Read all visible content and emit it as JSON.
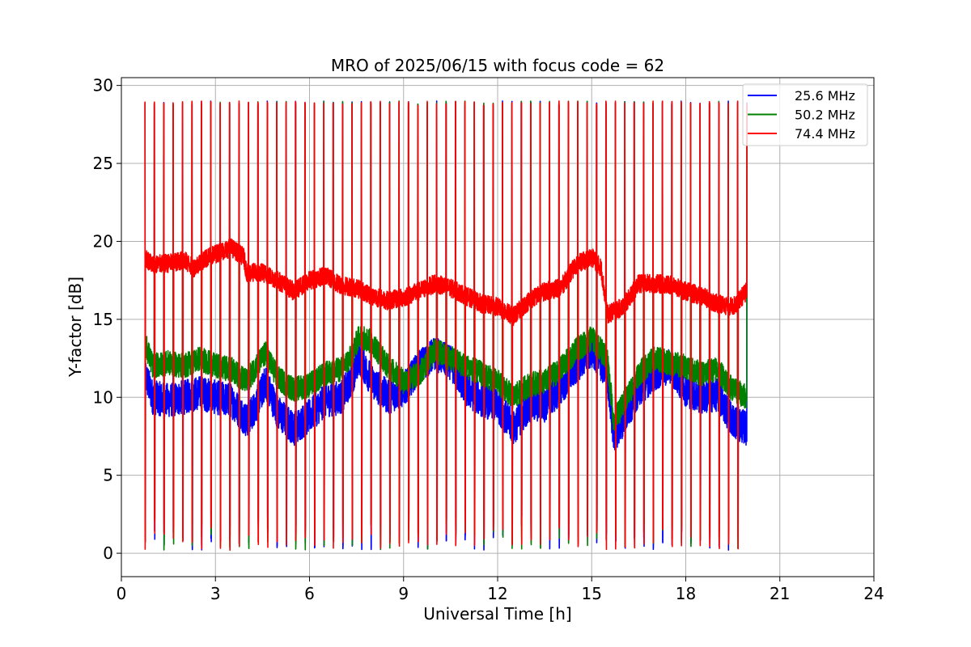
{
  "chart_data": {
    "type": "line",
    "title": "MRO of 2025/06/15 with focus code = 62",
    "xlabel": "Universal Time [h]",
    "ylabel": "Y-factor [dB]",
    "xlim": [
      0,
      24
    ],
    "ylim": [
      -1.5,
      30.5
    ],
    "xticks": [
      0,
      3,
      6,
      9,
      12,
      15,
      18,
      21,
      24
    ],
    "yticks": [
      0,
      5,
      10,
      15,
      20,
      25,
      30
    ],
    "grid": true,
    "legend_position": "top-right",
    "colors": {
      "blue": "#0000ff",
      "green": "#008000",
      "red": "#ff0000"
    },
    "calibration": {
      "start_h": 0.75,
      "period_h": 0.3,
      "end_h": 19.95,
      "pulse_high_db": 29,
      "pulse_low_db": 0.2,
      "note": "Periodic calibration spikes reaching ~29 dB and dropping to ~0 dB"
    },
    "series": [
      {
        "name": "25.6 MHz",
        "color": "#0000ff",
        "baseline": {
          "x": [
            0.75,
            1.0,
            1.5,
            2.0,
            2.5,
            3.0,
            3.5,
            4.0,
            4.3,
            4.6,
            5.0,
            5.5,
            6.0,
            6.5,
            7.0,
            7.3,
            7.6,
            8.0,
            8.5,
            9.0,
            9.5,
            10.0,
            10.5,
            11.0,
            11.5,
            12.0,
            12.5,
            13.0,
            13.5,
            14.0,
            14.5,
            15.0,
            15.5,
            15.7,
            16.0,
            16.5,
            17.0,
            17.5,
            18.0,
            18.5,
            19.0,
            19.5,
            19.95
          ],
          "y": [
            11.5,
            10.0,
            9.8,
            10.0,
            10.3,
            10.0,
            9.8,
            8.5,
            9.5,
            11.0,
            9.0,
            8.0,
            8.8,
            9.8,
            10.0,
            11.0,
            12.5,
            11.0,
            10.0,
            10.5,
            12.0,
            12.8,
            12.2,
            10.5,
            9.8,
            9.5,
            8.0,
            9.5,
            9.5,
            10.5,
            12.0,
            13.0,
            11.5,
            7.5,
            8.5,
            10.5,
            11.5,
            12.0,
            10.5,
            10.0,
            10.2,
            8.5,
            8.0
          ]
        },
        "ripple": 1.1
      },
      {
        "name": "50.2 MHz",
        "color": "#008000",
        "baseline": {
          "x": [
            0.75,
            1.0,
            1.5,
            2.0,
            2.5,
            3.0,
            3.5,
            4.0,
            4.3,
            4.6,
            5.0,
            5.5,
            6.0,
            6.5,
            7.0,
            7.3,
            7.6,
            8.0,
            8.5,
            9.0,
            9.5,
            10.0,
            10.5,
            11.0,
            11.5,
            12.0,
            12.5,
            13.0,
            13.5,
            14.0,
            14.5,
            15.0,
            15.5,
            15.7,
            16.0,
            16.5,
            17.0,
            17.5,
            18.0,
            18.5,
            19.0,
            19.5,
            19.95
          ],
          "y": [
            13.5,
            12.0,
            12.2,
            12.0,
            12.5,
            12.0,
            11.8,
            11.0,
            12.0,
            12.8,
            11.2,
            10.5,
            10.8,
            11.5,
            11.8,
            12.5,
            14.0,
            13.5,
            12.0,
            11.0,
            11.5,
            13.0,
            12.5,
            12.0,
            11.5,
            11.0,
            10.0,
            10.8,
            11.0,
            11.8,
            13.0,
            13.8,
            12.5,
            8.5,
            9.5,
            11.5,
            12.5,
            12.2,
            12.0,
            11.5,
            11.8,
            10.5,
            10.0
          ]
        },
        "ripple": 0.8
      },
      {
        "name": "74.4 MHz",
        "color": "#ff0000",
        "baseline": {
          "x": [
            0.75,
            1.0,
            1.5,
            2.0,
            2.3,
            2.6,
            3.0,
            3.5,
            3.9,
            4.0,
            4.5,
            5.0,
            5.5,
            6.0,
            6.5,
            7.0,
            7.5,
            8.0,
            8.5,
            9.0,
            9.5,
            10.0,
            10.5,
            11.0,
            11.5,
            12.0,
            12.5,
            13.0,
            13.5,
            14.0,
            14.5,
            15.0,
            15.3,
            15.5,
            16.0,
            16.5,
            17.0,
            17.5,
            18.0,
            18.5,
            19.0,
            19.5,
            19.95
          ],
          "y": [
            19.0,
            18.5,
            18.6,
            18.8,
            18.3,
            18.8,
            19.2,
            19.6,
            19.0,
            18.0,
            18.0,
            17.5,
            16.8,
            17.5,
            17.8,
            17.2,
            17.0,
            16.5,
            16.2,
            16.4,
            16.8,
            17.3,
            17.0,
            16.5,
            16.0,
            15.8,
            15.2,
            16.2,
            16.8,
            17.0,
            18.5,
            19.0,
            18.3,
            15.3,
            15.8,
            17.3,
            17.3,
            17.2,
            16.8,
            16.5,
            16.0,
            15.8,
            16.8
          ]
        },
        "ripple": 0.6
      }
    ]
  }
}
